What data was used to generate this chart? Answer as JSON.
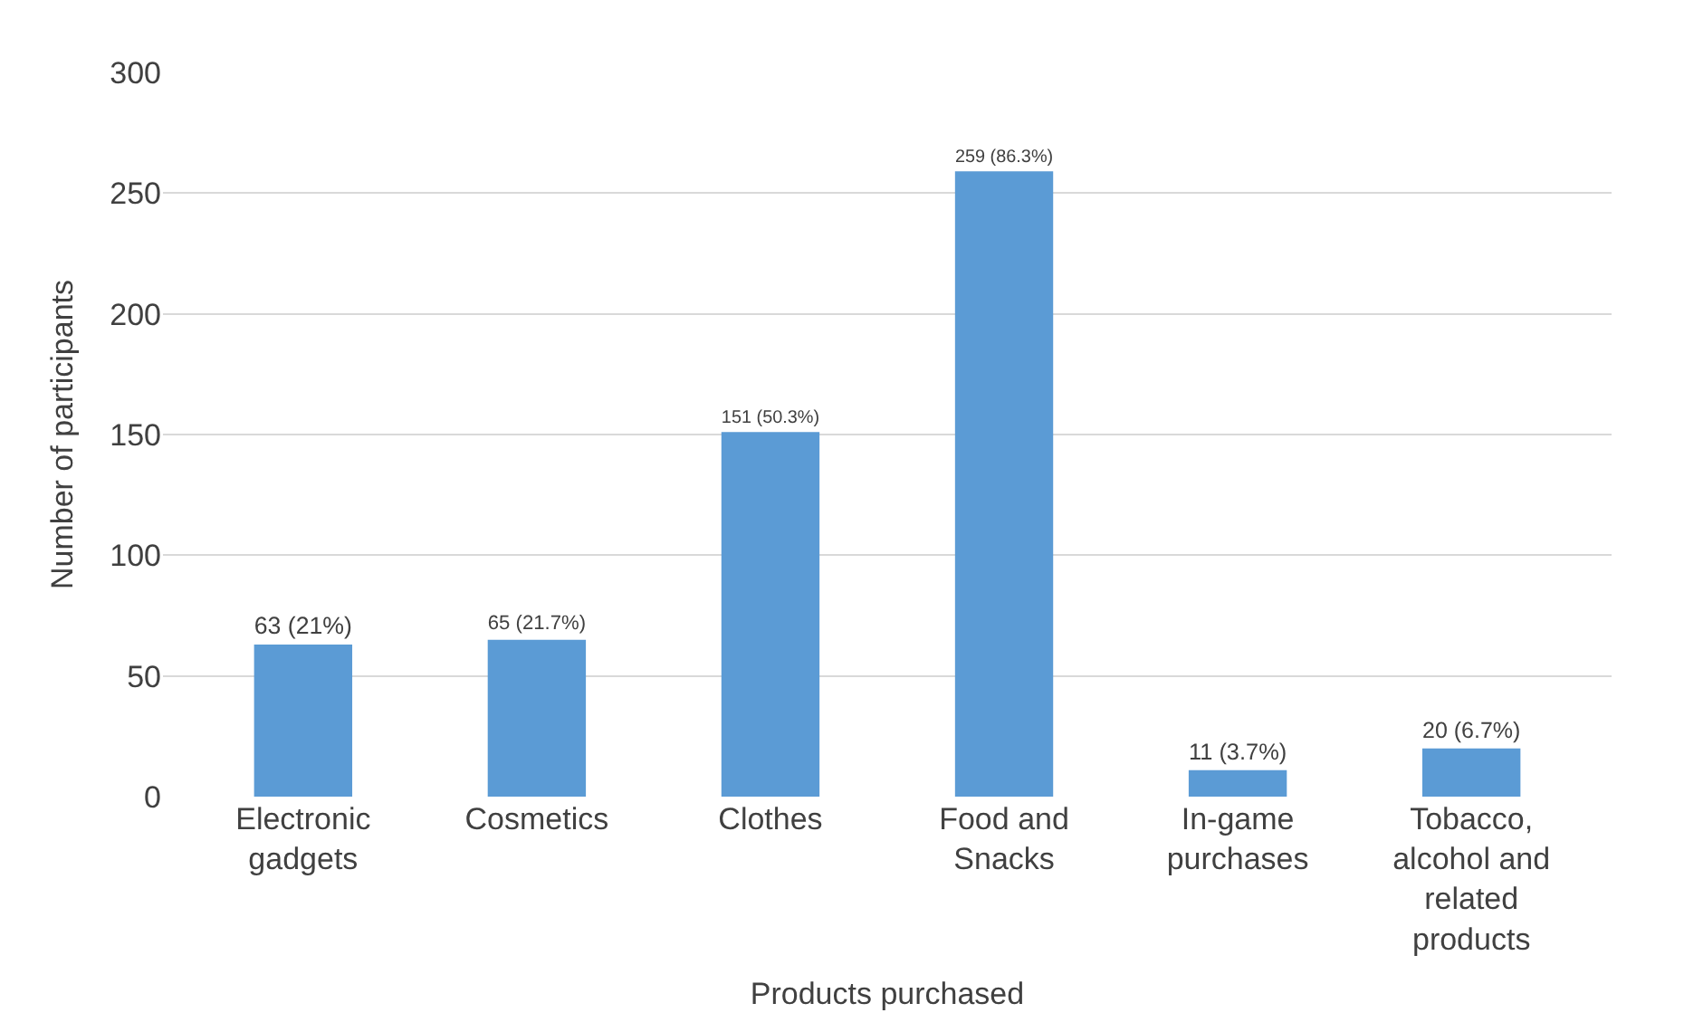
{
  "chart_data": {
    "type": "bar",
    "xlabel": "Products purchased",
    "ylabel": "Number of participants",
    "categories": [
      "Electronic gadgets",
      "Cosmetics",
      "Clothes",
      "Food and Snacks",
      "In-game purchases",
      "Tobacco, alcohol and related products"
    ],
    "values": [
      63,
      65,
      151,
      259,
      11,
      20
    ],
    "value_labels": [
      "63 (21%)",
      "65 (21.7%)",
      "151 (50.3%)",
      "259 (86.3%)",
      "11 (3.7%)",
      "20 (6.7%)"
    ],
    "color": "#5b9bd5",
    "ylim": [
      0,
      300
    ],
    "yticks": [
      0,
      50,
      100,
      150,
      200,
      250,
      300
    ],
    "grid": "y"
  }
}
